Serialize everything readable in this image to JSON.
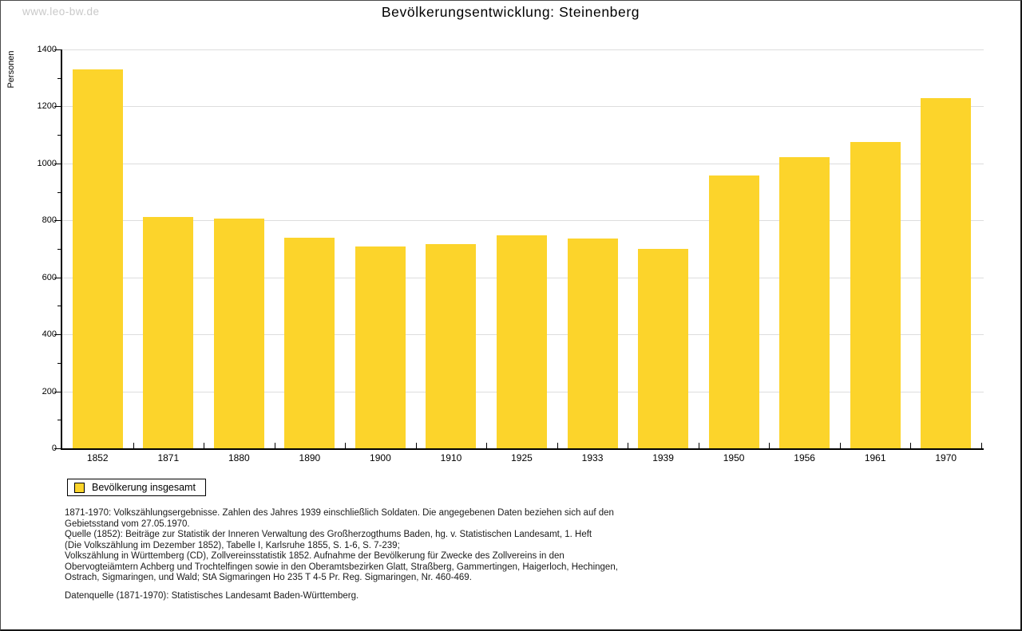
{
  "watermark": "www.leo-bw.de",
  "title": "Bevölkerungsentwicklung: Steinenberg",
  "chart_data": {
    "type": "bar",
    "title": "Bevölkerungsentwicklung: Steinenberg",
    "ylabel": "Personen",
    "xlabel": "",
    "categories": [
      "1852",
      "1871",
      "1880",
      "1890",
      "1900",
      "1910",
      "1925",
      "1933",
      "1939",
      "1950",
      "1956",
      "1961",
      "1970"
    ],
    "series": [
      {
        "name": "Bevölkerung insgesamt",
        "values": [
          1330,
          813,
          807,
          738,
          709,
          717,
          748,
          736,
          701,
          959,
          1023,
          1076,
          1229
        ]
      }
    ],
    "ylim": [
      0,
      1400
    ],
    "ytick_step": 200,
    "y_minor_step": 100,
    "grid": true,
    "legend_position": "bottom-left",
    "bar_color": "#FCD42B",
    "grid_color": "#DDDDDD",
    "axis_color": "#000000"
  },
  "legend": {
    "label": "Bevölkerung insgesamt",
    "swatch_color": "#FCD42B"
  },
  "footer": {
    "lines": [
      "1871-1970: Volkszählungsergebnisse. Zahlen des Jahres 1939 einschließlich Soldaten. Die angegebenen Daten beziehen sich auf den",
      "Gebietsstand vom 27.05.1970.",
      "Quelle (1852): Beiträge zur Statistik der Inneren Verwaltung des Großherzogthums Baden, hg. v. Statistischen Landesamt, 1. Heft",
      "(Die Volkszählung im Dezember 1852), Tabelle I, Karlsruhe 1855, S. 1-6, S. 7-239;",
      "Volkszählung in Württemberg (CD), Zollvereinsstatistik 1852. Aufnahme der Bevölkerung für Zwecke des Zollvereins in den",
      "Obervogteiämtern Achberg und Trochtelfingen sowie in den Oberamtsbezirken Glatt, Straßberg, Gammertingen, Haigerloch, Hechingen,",
      "Ostrach, Sigmaringen, und Wald; StA Sigmaringen Ho 235 T 4-5 Pr. Reg. Sigmaringen, Nr. 460-469."
    ],
    "datasource": "Datenquelle (1871-1970): Statistisches Landesamt Baden-Württemberg."
  }
}
